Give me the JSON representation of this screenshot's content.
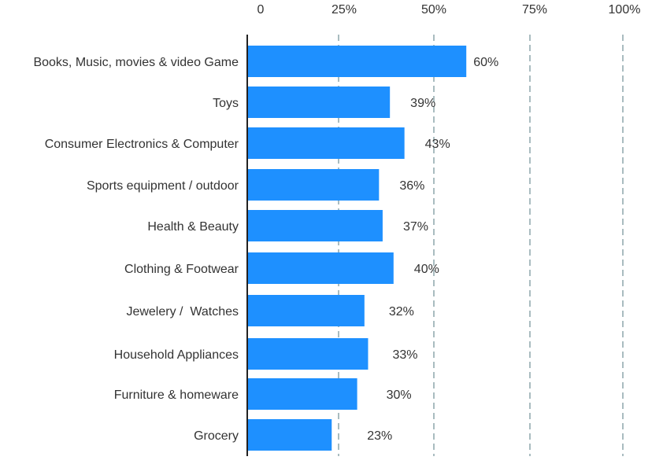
{
  "chart_data": {
    "type": "bar",
    "orientation": "horizontal",
    "categories": [
      "Books, Music, movies & video Game",
      "Toys",
      "Consumer Electronics & Computer",
      "Sports equipment / outdoor",
      "Health & Beauty",
      "Clothing & Footwear",
      "Jewelery /  Watches",
      "Household Appliances",
      "Furniture & homeware",
      "Grocery"
    ],
    "values": [
      60,
      39,
      43,
      36,
      37,
      40,
      32,
      33,
      30,
      23
    ],
    "value_labels": [
      "60%",
      "39%",
      "43%",
      "36%",
      "37%",
      "40%",
      "32%",
      "33%",
      "30%",
      "23%"
    ],
    "x_ticks": [
      0,
      25,
      50,
      75,
      100
    ],
    "x_tick_labels": [
      "0",
      "25%",
      "50%",
      "75%",
      "100%"
    ],
    "xlim": [
      0,
      100
    ],
    "x_axis_position": "top",
    "grid": "vertical dashed",
    "bar_color": "#1e90ff",
    "grid_color": "#a9bcc0",
    "title": "",
    "xlabel": "",
    "ylabel": ""
  }
}
